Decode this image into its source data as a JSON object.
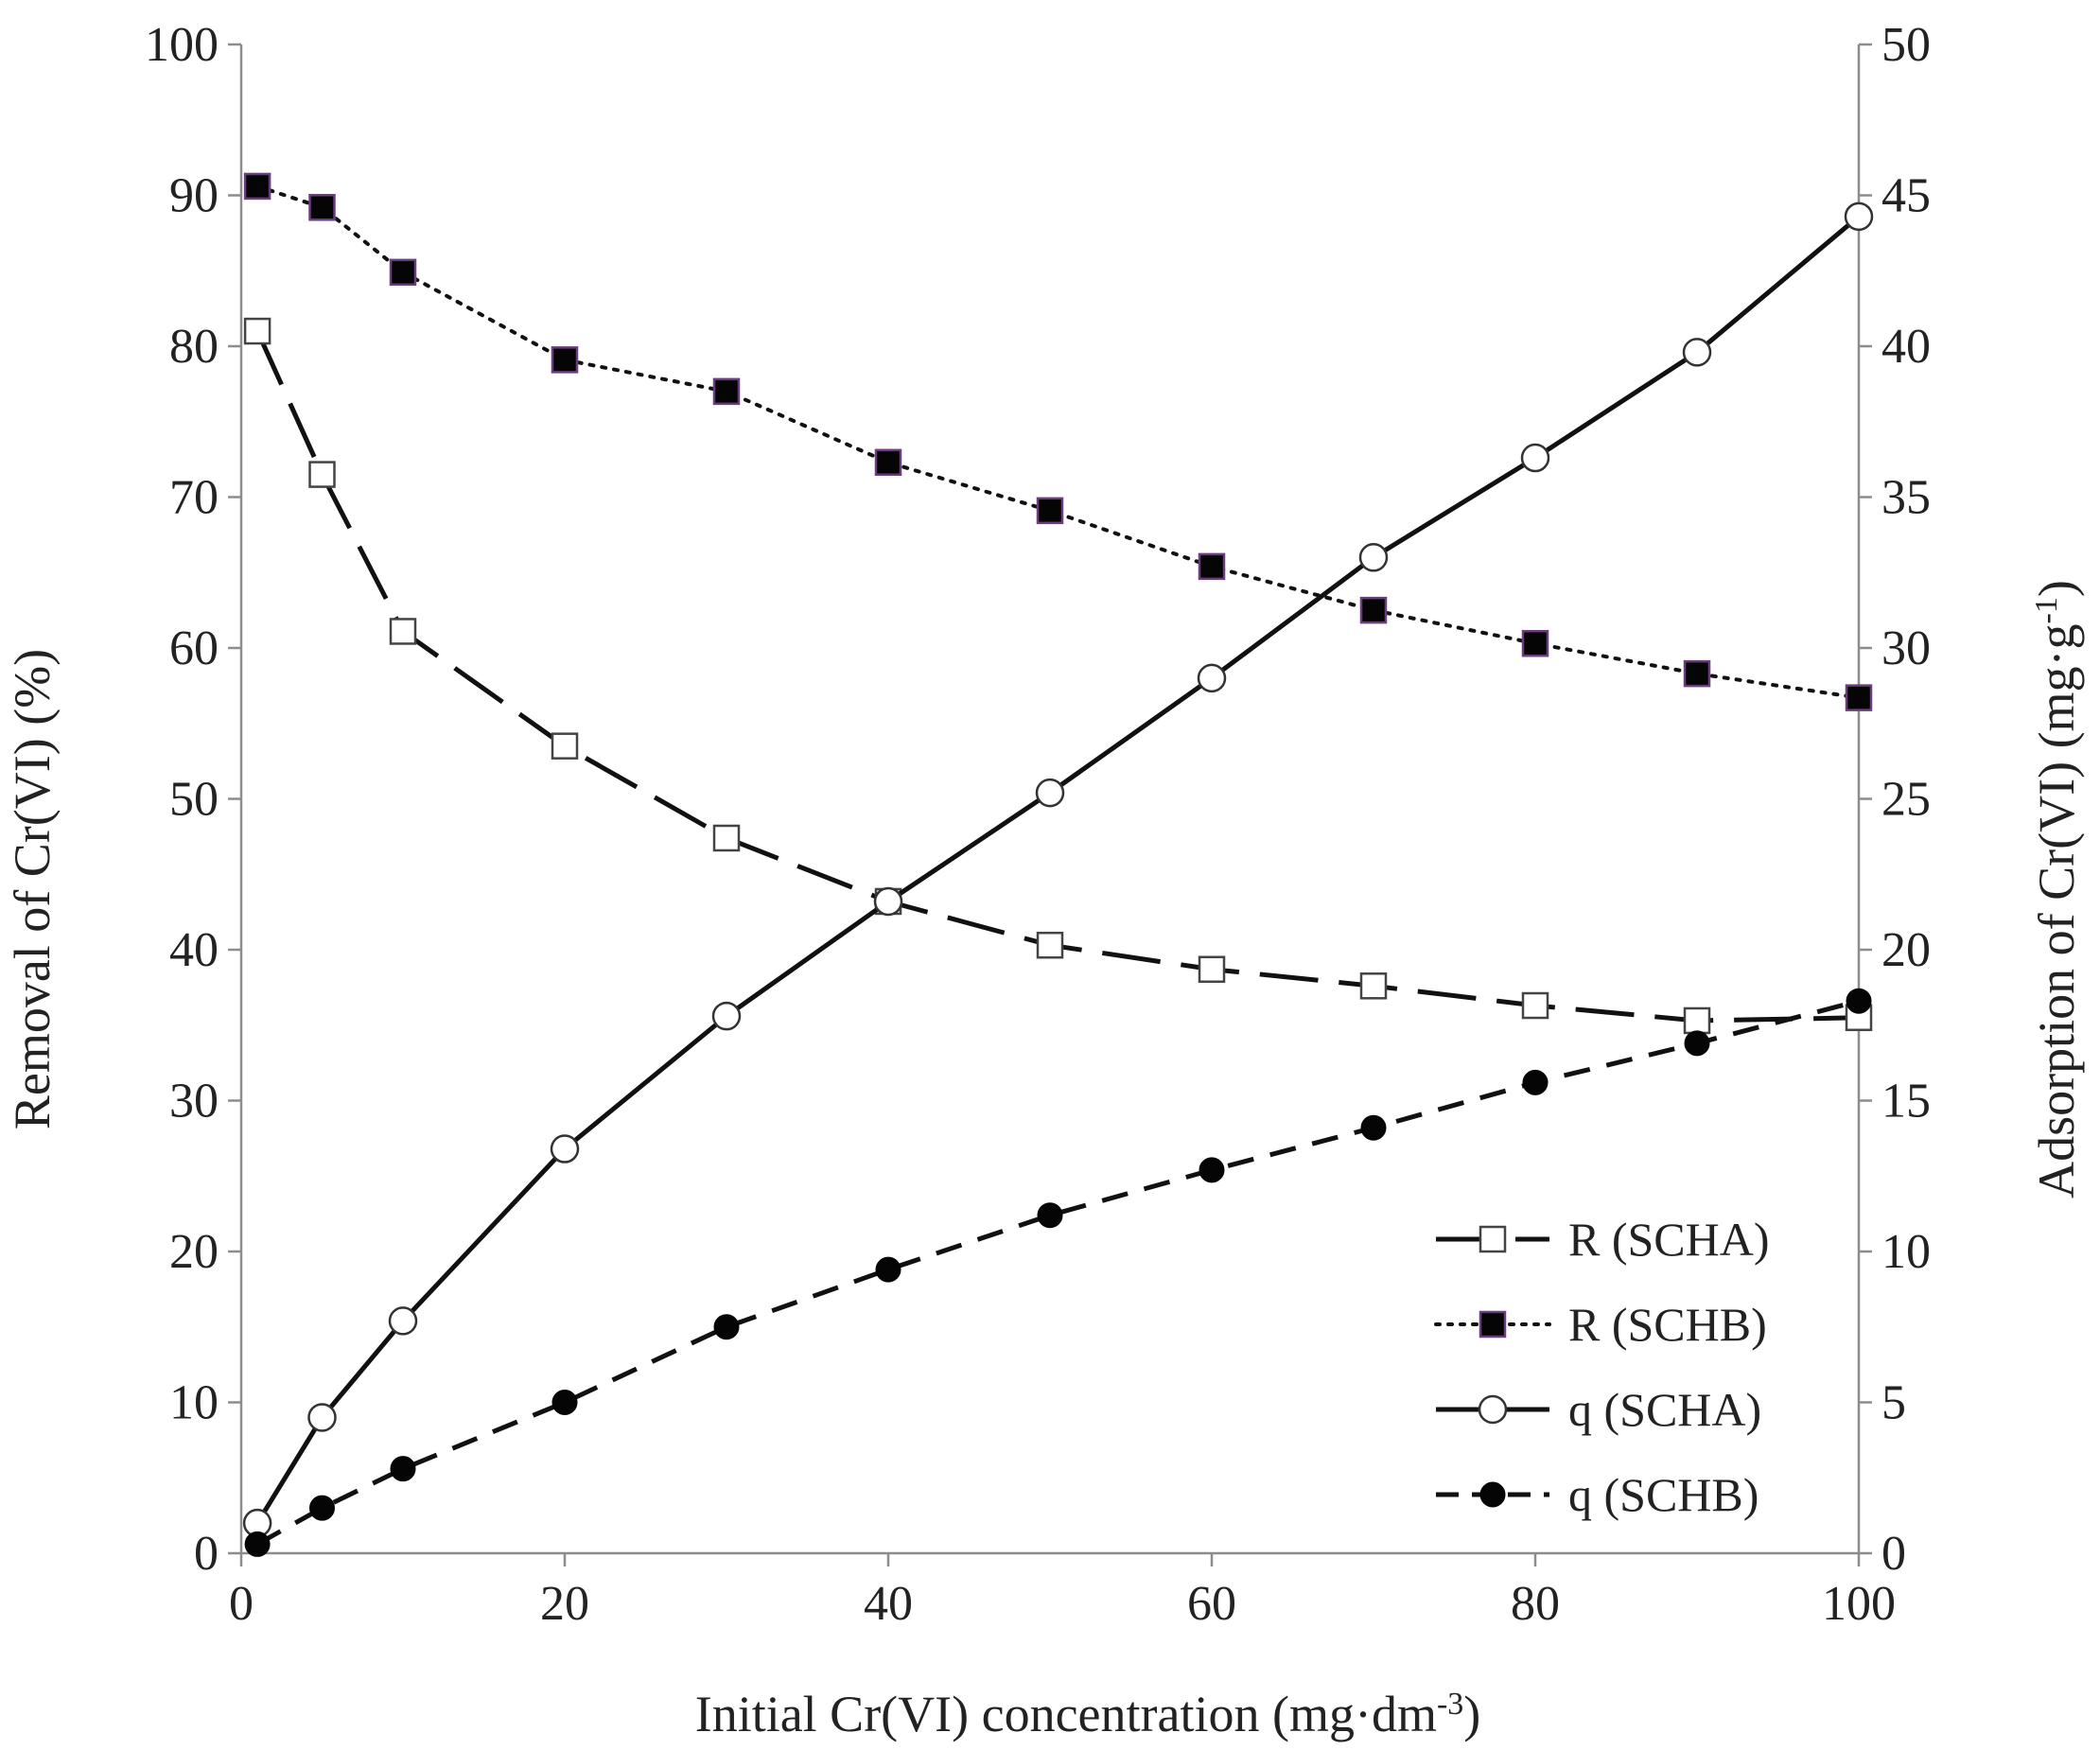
{
  "chart_data": {
    "type": "line",
    "xlabel": "Initial Cr(VI) concentration (mg·dm",
    "xlabel_sup": "-3",
    "xlabel_end": ")",
    "ylabel_left": "Removal of Cr(VI) (%)",
    "ylabel_right": "Adsorption of Cr(VI) (mg·g",
    "ylabel_right_sup": "-1",
    "ylabel_right_end": ")",
    "xlim": [
      0,
      100
    ],
    "ylim_left": [
      0,
      100
    ],
    "ylim_right": [
      0,
      50
    ],
    "x_ticks": [
      0,
      20,
      40,
      60,
      80,
      100
    ],
    "y_left_ticks": [
      0,
      10,
      20,
      30,
      40,
      50,
      60,
      70,
      80,
      90,
      100
    ],
    "y_right_ticks": [
      0,
      5,
      10,
      15,
      20,
      25,
      30,
      35,
      40,
      45,
      50
    ],
    "legend_position": "bottom-right",
    "x": [
      1,
      5,
      10,
      20,
      30,
      40,
      50,
      60,
      70,
      80,
      90,
      100
    ],
    "series": [
      {
        "name": "R (SCHA)",
        "axis": "left",
        "marker": "square-open",
        "line": "long-dash",
        "values": [
          81.0,
          71.5,
          61.1,
          53.5,
          47.4,
          43.2,
          40.3,
          38.7,
          37.6,
          36.3,
          35.3,
          35.5
        ]
      },
      {
        "name": "R (SCHB)",
        "axis": "left",
        "marker": "square-filled",
        "line": "dotted",
        "values": [
          90.6,
          89.2,
          84.9,
          79.1,
          77.0,
          72.3,
          69.1,
          65.4,
          62.5,
          60.3,
          58.3,
          56.7
        ]
      },
      {
        "name": "q (SCHA)",
        "axis": "right",
        "marker": "circle-open",
        "line": "solid",
        "values": [
          1.0,
          4.5,
          7.7,
          13.4,
          17.8,
          21.6,
          25.2,
          29.0,
          33.0,
          36.3,
          39.8,
          44.3
        ]
      },
      {
        "name": "q (SCHB)",
        "axis": "right",
        "marker": "circle-filled",
        "line": "short-dash",
        "values": [
          0.3,
          1.5,
          2.8,
          5.0,
          7.5,
          9.4,
          11.2,
          12.7,
          14.1,
          15.6,
          16.9,
          18.3
        ]
      }
    ]
  }
}
